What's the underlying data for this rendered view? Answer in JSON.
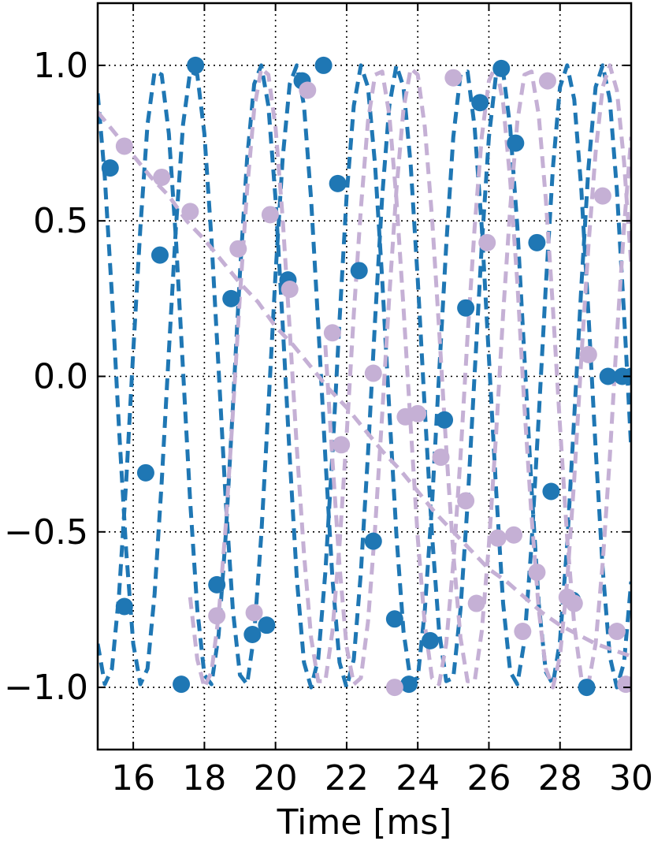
{
  "chart_data": {
    "type": "scatter",
    "xlabel": "Time [ms]",
    "ylabel": "",
    "xlim": [
      15,
      30
    ],
    "ylim": [
      -1.2,
      1.2
    ],
    "xticks": [
      16,
      18,
      20,
      22,
      24,
      26,
      28,
      30
    ],
    "yticks": [
      1.0,
      0.5,
      0.0,
      -0.5,
      -1.0
    ],
    "ytick_labels": [
      "1.0",
      "0.5",
      "0.0",
      "−0.5",
      "−1.0"
    ],
    "grid": true,
    "legend": "none",
    "colors": {
      "blue": "#1f77b4",
      "lilac": "#c5b0d5"
    },
    "series": [
      {
        "style": "dashed-line",
        "color": "#1f77b4",
        "x": [
          15.0,
          15.2,
          15.4,
          15.6,
          15.8,
          16.0,
          16.2,
          16.4,
          16.6,
          16.8,
          17.0,
          17.2,
          17.4,
          17.6,
          17.8,
          18.0,
          18.2,
          18.4,
          18.6,
          18.8,
          19.0,
          19.2,
          19.4,
          19.6,
          19.8,
          20.0,
          20.2,
          20.4,
          20.6,
          20.8,
          21.0,
          21.2,
          21.4,
          21.6,
          21.8,
          22.0,
          22.2,
          22.4,
          22.6,
          22.8,
          23.0,
          23.2,
          23.4,
          23.6,
          23.8,
          24.0,
          24.2,
          24.4,
          24.6,
          24.8,
          25.0,
          25.2,
          25.4,
          25.6,
          25.8,
          26.0,
          26.2,
          26.4,
          26.6,
          26.8,
          27.0,
          27.2,
          27.4,
          27.6,
          27.8,
          28.0,
          28.2,
          28.4,
          28.6,
          28.8,
          29.0,
          29.2,
          29.4,
          29.6,
          29.8,
          30.0
        ],
        "y": [
          0.91,
          0.64,
          0.26,
          -0.17,
          -0.56,
          -0.86,
          -0.99,
          -0.94,
          -0.7,
          -0.34,
          0.08,
          0.48,
          0.81,
          0.98,
          0.97,
          0.78,
          0.44,
          0.02,
          -0.4,
          -0.75,
          -0.96,
          -0.99,
          -0.83,
          -0.51,
          -0.1,
          0.33,
          0.7,
          0.94,
          1.0,
          0.87,
          0.57,
          0.17,
          -0.26,
          -0.65,
          -0.92,
          -1.0,
          -0.91,
          -0.63,
          -0.25,
          0.18,
          0.58,
          0.87,
          1.0,
          0.93,
          0.68,
          0.31,
          -0.11,
          -0.51,
          -0.82,
          -0.98,
          -0.97,
          -0.75,
          -0.41,
          0.01,
          0.42,
          0.77,
          0.97,
          0.98,
          0.8,
          0.48,
          0.06,
          -0.36,
          -0.73,
          -0.95,
          -0.99,
          -0.85,
          -0.54,
          -0.13,
          0.29,
          0.67,
          0.93,
          1.0,
          0.89,
          0.6,
          0.2,
          -0.23
        ]
      },
      {
        "style": "dashed-line",
        "color": "#1f77b4",
        "x": [
          15.0,
          15.2,
          15.4,
          15.6,
          15.8,
          16.0,
          16.2,
          16.4,
          16.6,
          16.8,
          17.0,
          17.2,
          17.4,
          17.6,
          17.8,
          18.0,
          18.2,
          18.4,
          18.6,
          18.8,
          19.0,
          19.2,
          19.4,
          19.6,
          19.8,
          20.0,
          20.2,
          20.4,
          20.6,
          20.8,
          21.0,
          21.2,
          21.4,
          21.6,
          21.8,
          22.0,
          22.2,
          22.4,
          22.6,
          22.8,
          23.0,
          23.2,
          23.4,
          23.6,
          23.8,
          24.0,
          24.2,
          24.4,
          24.6,
          24.8,
          25.0,
          25.2,
          25.4,
          25.6,
          25.8,
          26.0,
          26.2,
          26.4,
          26.6,
          26.8,
          27.0,
          27.2,
          27.4,
          27.6,
          27.8,
          28.0,
          28.2,
          28.4,
          28.6,
          28.8,
          29.0,
          29.2,
          29.4,
          29.6,
          29.8,
          30.0
        ],
        "y": [
          -0.86,
          -0.99,
          -0.94,
          -0.7,
          -0.34,
          0.08,
          0.48,
          0.81,
          0.98,
          0.97,
          0.78,
          0.44,
          0.02,
          -0.4,
          -0.75,
          -0.96,
          -0.99,
          -0.83,
          -0.51,
          -0.1,
          0.33,
          0.7,
          0.94,
          1.0,
          0.87,
          0.57,
          0.17,
          -0.26,
          -0.65,
          -0.92,
          -1.0,
          -0.91,
          -0.63,
          -0.25,
          0.18,
          0.58,
          0.87,
          1.0,
          0.93,
          0.68,
          0.31,
          -0.11,
          -0.51,
          -0.82,
          -0.98,
          -0.97,
          -0.75,
          -0.41,
          0.01,
          0.42,
          0.77,
          0.97,
          0.98,
          0.8,
          0.48,
          0.06,
          -0.36,
          -0.73,
          -0.95,
          -0.99,
          -0.85,
          -0.54,
          -0.13,
          0.29,
          0.67,
          0.93,
          1.0,
          0.89,
          0.6,
          0.2,
          -0.23,
          -0.62,
          -0.9,
          -1.0,
          -0.92,
          -0.66
        ]
      },
      {
        "style": "dashed-line",
        "color": "#c5b0d5",
        "x": [
          15.0,
          15.5,
          16.0,
          16.5,
          17.0,
          17.5,
          18.0,
          18.5,
          19.0,
          19.5,
          20.0,
          20.5,
          21.0,
          21.5,
          22.0,
          22.5,
          23.0,
          23.5,
          24.0,
          24.5,
          25.0,
          25.5,
          26.0,
          26.5,
          27.0,
          27.5,
          28.0,
          28.5,
          29.0,
          29.5,
          30.0
        ],
        "y": [
          0.85,
          0.78,
          0.71,
          0.64,
          0.58,
          0.5,
          0.44,
          0.37,
          0.3,
          0.24,
          0.16,
          0.1,
          0.03,
          -0.04,
          -0.1,
          -0.17,
          -0.24,
          -0.3,
          -0.37,
          -0.44,
          -0.5,
          -0.56,
          -0.62,
          -0.66,
          -0.71,
          -0.76,
          -0.8,
          -0.83,
          -0.86,
          -0.88,
          -0.9
        ]
      },
      {
        "style": "dashed-line",
        "color": "#c5b0d5",
        "x": [
          17.6,
          17.8,
          18.0,
          18.2,
          18.4,
          18.6,
          18.8,
          19.0,
          19.2,
          19.4,
          19.6,
          19.8,
          20.0,
          20.2,
          20.4,
          20.6,
          20.8,
          21.0,
          21.2,
          21.4,
          21.6,
          21.8,
          22.0,
          22.2,
          22.4,
          22.6,
          22.8,
          23.0,
          23.2,
          23.4,
          23.6,
          23.8,
          24.0,
          24.2,
          24.4,
          24.6,
          24.8,
          25.0,
          25.2,
          25.4,
          25.6,
          25.8,
          26.0,
          26.2,
          26.4,
          26.6,
          26.8,
          27.0,
          27.2,
          27.4,
          27.6,
          27.8,
          28.0,
          28.2,
          28.4,
          28.6,
          28.8,
          29.0,
          29.2,
          29.4,
          29.6,
          29.8,
          30.0
        ],
        "y": [
          -0.71,
          -0.91,
          -1.0,
          -0.95,
          -0.77,
          -0.48,
          -0.12,
          0.26,
          0.6,
          0.86,
          0.99,
          0.97,
          0.8,
          0.51,
          0.15,
          -0.23,
          -0.57,
          -0.84,
          -0.98,
          -0.98,
          -0.82,
          -0.54,
          -0.19,
          0.2,
          0.54,
          0.82,
          0.97,
          0.98,
          0.84,
          0.57,
          0.22,
          -0.16,
          -0.52,
          -0.8,
          -0.97,
          -0.99,
          -0.86,
          -0.6,
          -0.26,
          0.13,
          0.48,
          0.77,
          0.95,
          1.0,
          0.88,
          0.63,
          0.3,
          -0.1,
          -0.45,
          -0.75,
          -0.94,
          -1.0,
          -0.9,
          -0.66,
          -0.33,
          0.06,
          0.42,
          0.72,
          0.93,
          1.0,
          0.92,
          0.69,
          0.36
        ]
      },
      {
        "style": "dashed-line",
        "color": "#c5b0d5",
        "x": [
          21.4,
          21.6,
          21.8,
          22.0,
          22.2,
          22.4,
          22.6,
          22.8,
          23.0,
          23.2,
          23.4,
          23.6,
          23.8,
          24.0,
          24.2,
          24.4,
          24.6,
          24.8,
          25.0,
          25.2,
          25.4,
          25.6,
          25.8,
          26.0,
          26.2,
          26.4,
          26.6,
          26.8,
          27.0,
          27.2,
          27.4,
          27.6,
          27.8,
          28.0,
          28.2,
          28.4,
          28.6,
          28.8,
          29.0,
          29.2,
          29.4,
          29.6,
          29.8,
          30.0
        ],
        "y": [
          0.1,
          -0.27,
          -0.61,
          -0.87,
          -0.99,
          -0.97,
          -0.79,
          -0.49,
          -0.12,
          0.26,
          0.6,
          0.86,
          0.99,
          0.97,
          0.8,
          0.51,
          0.15,
          -0.23,
          -0.57,
          -0.84,
          -0.98,
          -0.98,
          -0.82,
          -0.54,
          -0.19,
          0.2,
          0.54,
          0.82,
          0.97,
          0.98,
          0.84,
          0.57,
          0.22,
          -0.16,
          -0.52,
          -0.8,
          -0.97,
          -0.99,
          -0.86,
          -0.6,
          -0.26,
          0.13,
          0.48,
          0.77
        ]
      },
      {
        "style": "markers",
        "color": "#1f77b4",
        "x": [
          15.35,
          15.75,
          16.35,
          16.75,
          17.35,
          17.75,
          18.35,
          18.75,
          19.35,
          19.75,
          20.35,
          20.75,
          21.35,
          21.75,
          22.35,
          22.75,
          23.35,
          23.75,
          24.35,
          24.75,
          25.35,
          25.75,
          26.35,
          26.75,
          27.35,
          27.75,
          28.35,
          28.75,
          29.35,
          29.75,
          30.0
        ],
        "y": [
          0.67,
          -0.74,
          -0.31,
          0.39,
          -0.99,
          1.0,
          -0.67,
          0.25,
          -0.83,
          -0.8,
          0.31,
          0.95,
          1.0,
          0.62,
          0.34,
          -0.53,
          -0.78,
          -0.99,
          -0.85,
          -0.14,
          0.22,
          0.88,
          0.99,
          0.75,
          0.43,
          -0.37,
          -0.72,
          -1.0,
          0.0,
          0.0,
          0.0
        ]
      },
      {
        "style": "markers",
        "color": "#c5b0d5",
        "x": [
          15.75,
          16.8,
          17.6,
          18.35,
          18.95,
          19.4,
          19.85,
          20.4,
          20.9,
          21.6,
          21.85,
          22.75,
          23.35,
          23.65,
          24.0,
          24.65,
          25.0,
          25.35,
          25.65,
          25.95,
          26.25,
          26.7,
          26.95,
          27.35,
          27.65,
          28.2,
          28.4,
          28.8,
          29.2,
          29.6,
          29.85
        ],
        "y": [
          0.74,
          0.64,
          0.53,
          -0.77,
          0.41,
          -0.76,
          0.52,
          0.28,
          0.92,
          0.14,
          -0.22,
          0.01,
          -1.0,
          -0.13,
          -0.12,
          -0.26,
          0.96,
          -0.4,
          -0.73,
          0.43,
          -0.52,
          -0.51,
          -0.82,
          -0.63,
          0.95,
          -0.71,
          -0.73,
          0.07,
          0.58,
          -0.82,
          -0.99
        ]
      }
    ]
  },
  "axes": {
    "x_title": "Time [ms]"
  }
}
